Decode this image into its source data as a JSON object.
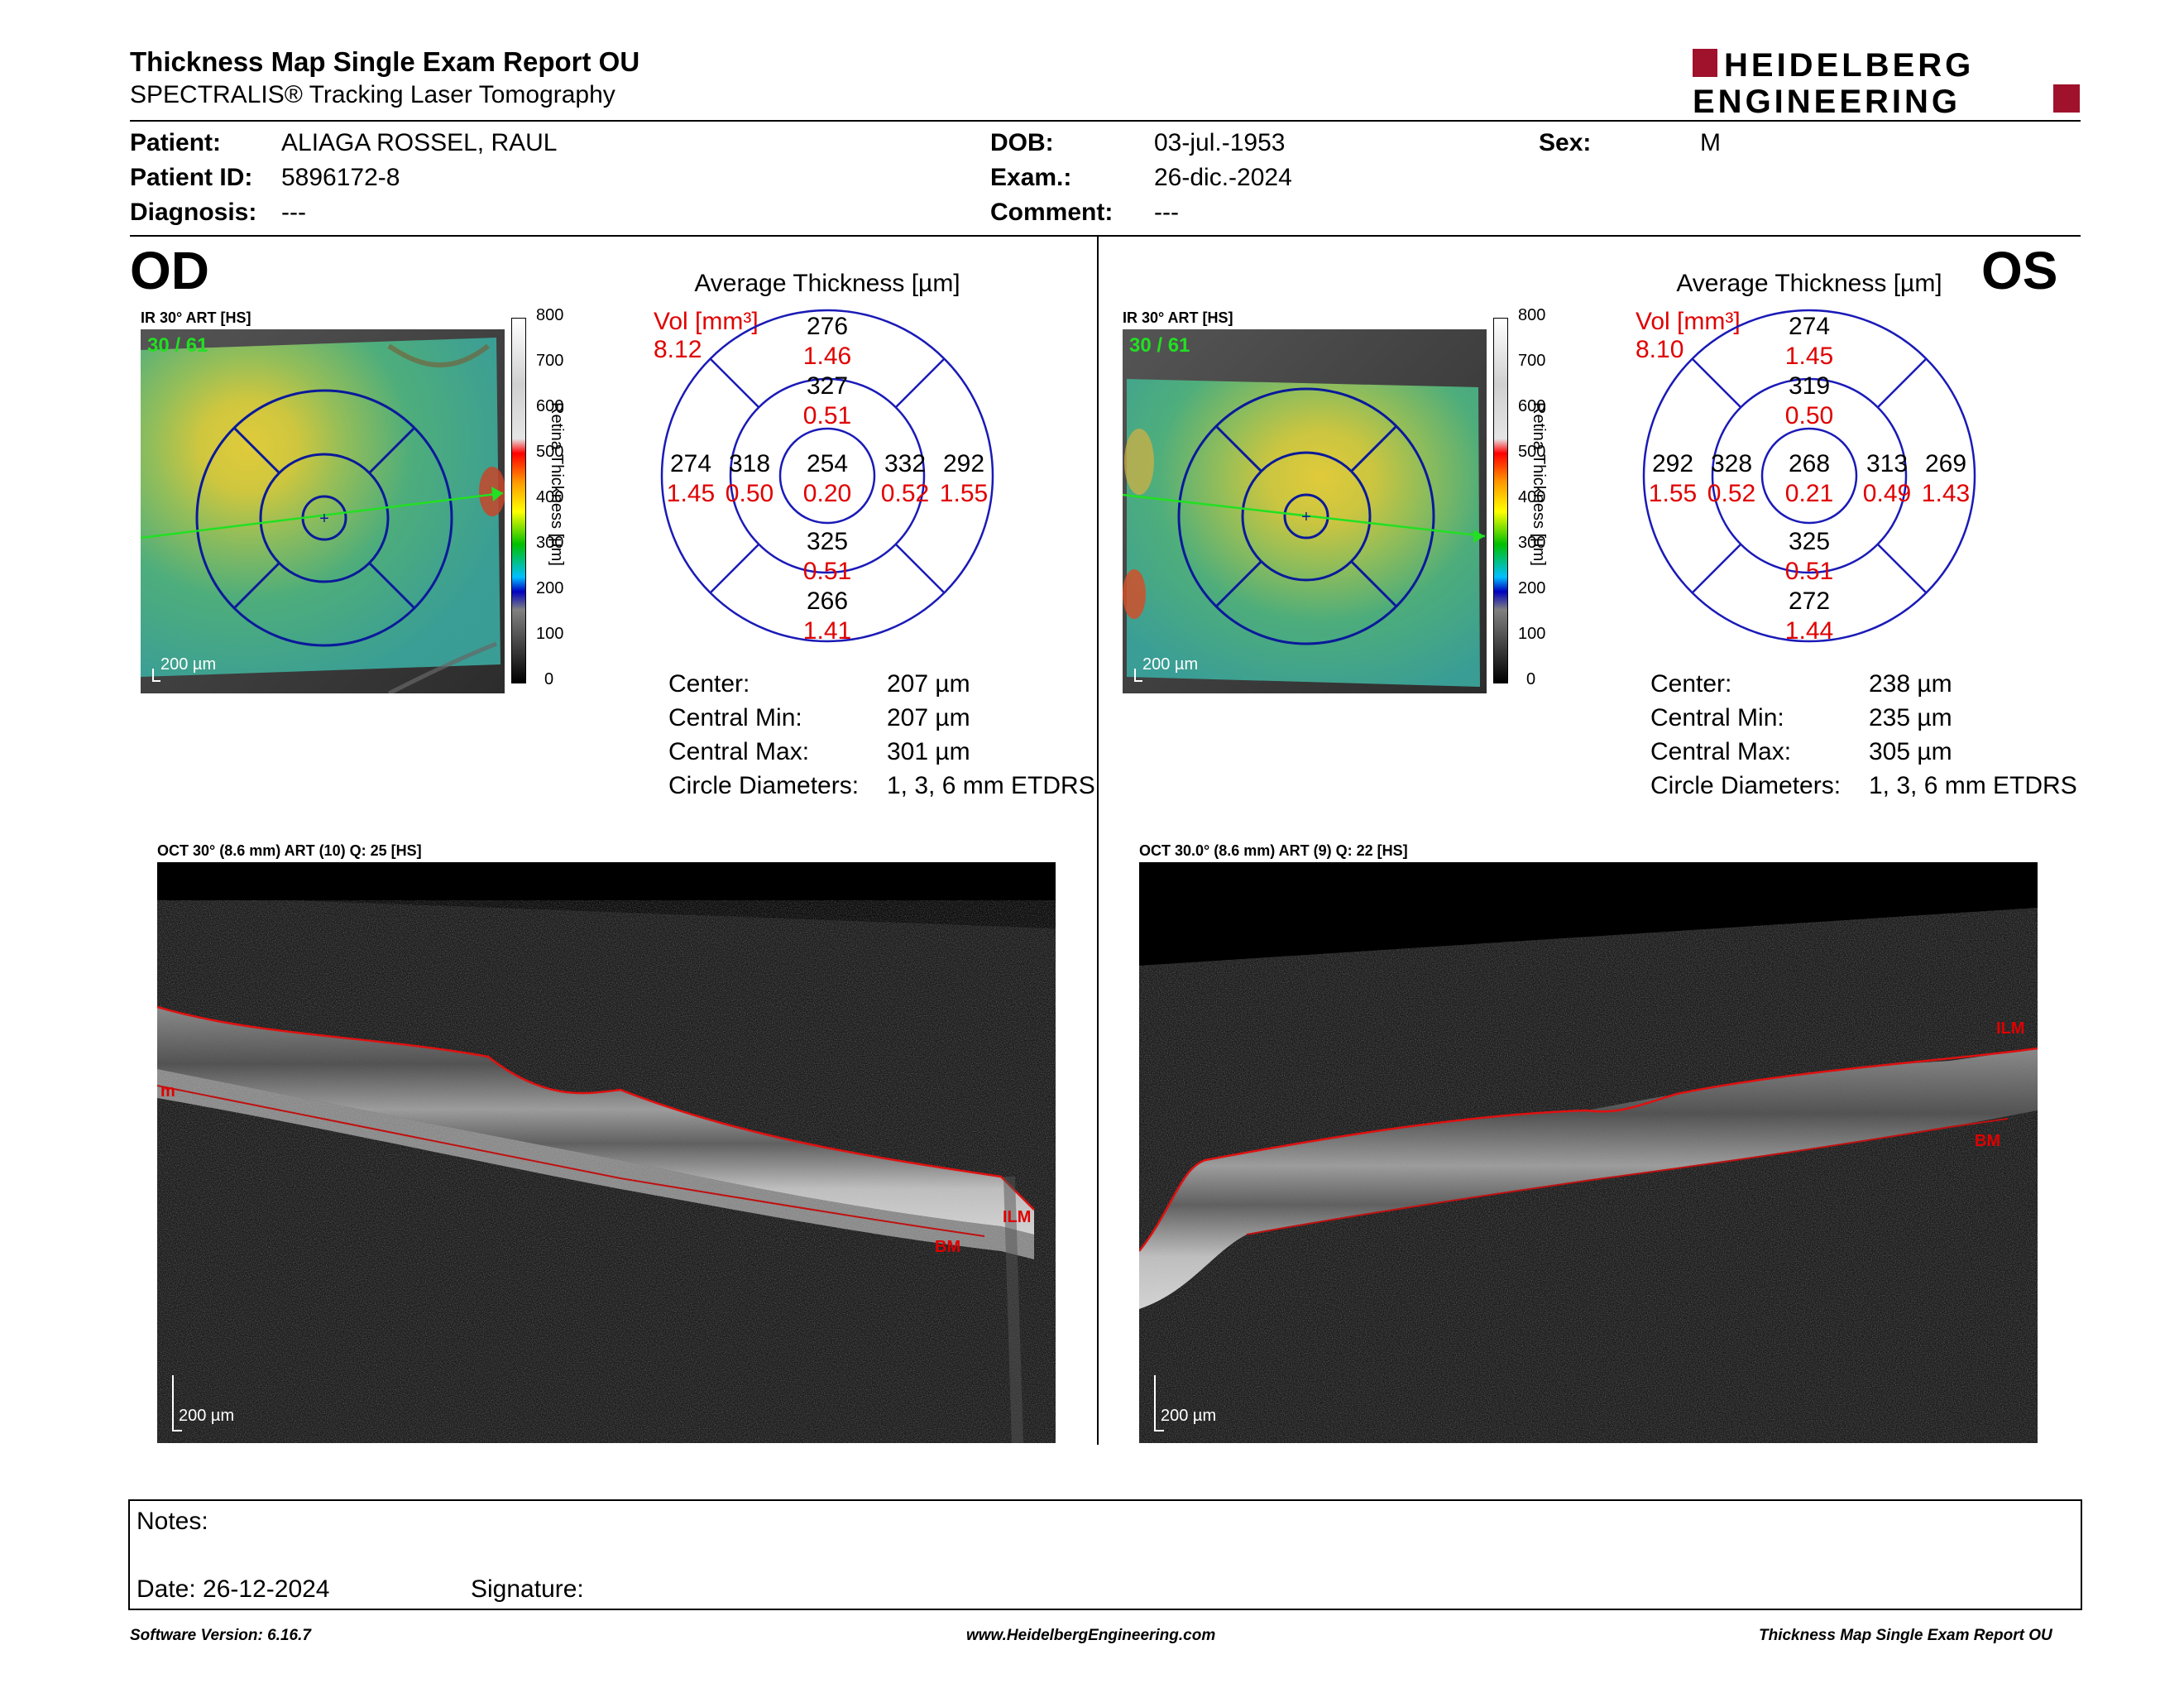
{
  "header": {
    "title": "Thickness Map Single Exam Report OU",
    "subtitle": "SPECTRALIS® Tracking Laser Tomography",
    "logo_top": "HEIDELBERG",
    "logo_bottom": "ENGINEERING",
    "brand_color": "#a0112b"
  },
  "patient": {
    "patient_label": "Patient:",
    "patient_value": "ALIAGA ROSSEL, RAUL",
    "id_label": "Patient ID:",
    "id_value": "5896172-8",
    "diagnosis_label": "Diagnosis:",
    "diagnosis_value": "---",
    "dob_label": "DOB:",
    "dob_value": "03-jul.-1953",
    "exam_label": "Exam.:",
    "exam_value": "26-dic.-2024",
    "comment_label": "Comment:",
    "comment_value": "---",
    "sex_label": "Sex:",
    "sex_value": "M"
  },
  "od": {
    "label": "OD",
    "ir_label": "IR 30° ART [HS]",
    "frame": "30 / 61",
    "scale": "200 µm",
    "colorbar_ticks": [
      "800",
      "700",
      "600",
      "500",
      "400",
      "300",
      "200",
      "100",
      "0"
    ],
    "colorbar_title": "Retina  Thickness [µm]",
    "avg_title": "Average Thickness [µm]",
    "vol_label": "Vol [mm³]",
    "vol_value": "8.12",
    "sectors": {
      "outer_top": [
        "276",
        "1.46"
      ],
      "inner_top": [
        "327",
        "0.51"
      ],
      "outer_left": [
        "274",
        "1.45"
      ],
      "inner_left": [
        "318",
        "0.50"
      ],
      "center": [
        "254",
        "0.20"
      ],
      "inner_right": [
        "332",
        "0.52"
      ],
      "outer_right": [
        "292",
        "1.55"
      ],
      "inner_bottom": [
        "325",
        "0.51"
      ],
      "outer_bottom": [
        "266",
        "1.41"
      ]
    },
    "stats": [
      {
        "label": "Center:",
        "value": "207 µm"
      },
      {
        "label": "Central Min:",
        "value": "207 µm"
      },
      {
        "label": "Central Max:",
        "value": "301 µm"
      },
      {
        "label": "Circle Diameters:",
        "value": "1, 3, 6 mm ETDRS"
      }
    ],
    "oct_label": "OCT 30° (8.6 mm) ART (10) Q: 25 [HS]",
    "oct_scale": "200 µm",
    "layer_ilm": "ILM",
    "layer_bm": "BM",
    "layer_left": "m"
  },
  "os": {
    "label": "OS",
    "ir_label": "IR 30° ART [HS]",
    "frame": "30 / 61",
    "scale": "200 µm",
    "colorbar_ticks": [
      "800",
      "700",
      "600",
      "500",
      "400",
      "300",
      "200",
      "100",
      "0"
    ],
    "colorbar_title": "Retina  Thickness [µm]",
    "avg_title": "Average Thickness [µm]",
    "vol_label": "Vol [mm³]",
    "vol_value": "8.10",
    "sectors": {
      "outer_top": [
        "274",
        "1.45"
      ],
      "inner_top": [
        "319",
        "0.50"
      ],
      "outer_left": [
        "292",
        "1.55"
      ],
      "inner_left": [
        "328",
        "0.52"
      ],
      "center": [
        "268",
        "0.21"
      ],
      "inner_right": [
        "313",
        "0.49"
      ],
      "outer_right": [
        "269",
        "1.43"
      ],
      "inner_bottom": [
        "325",
        "0.51"
      ],
      "outer_bottom": [
        "272",
        "1.44"
      ]
    },
    "stats": [
      {
        "label": "Center:",
        "value": "238 µm"
      },
      {
        "label": "Central Min:",
        "value": "235 µm"
      },
      {
        "label": "Central Max:",
        "value": "305 µm"
      },
      {
        "label": "Circle Diameters:",
        "value": "1, 3, 6 mm ETDRS"
      }
    ],
    "oct_label": "OCT 30.0° (8.6 mm) ART (9) Q: 22 [HS]",
    "oct_scale": "200 µm",
    "layer_ilm": "ILM",
    "layer_bm": "BM"
  },
  "notes": {
    "notes_label": "Notes:",
    "date_label": "Date: 26-12-2024",
    "signature_label": "Signature:"
  },
  "footer": {
    "left": "Software Version: 6.16.7",
    "center": "www.HeidelbergEngineering.com",
    "right": "Thickness Map Single Exam Report OU"
  }
}
